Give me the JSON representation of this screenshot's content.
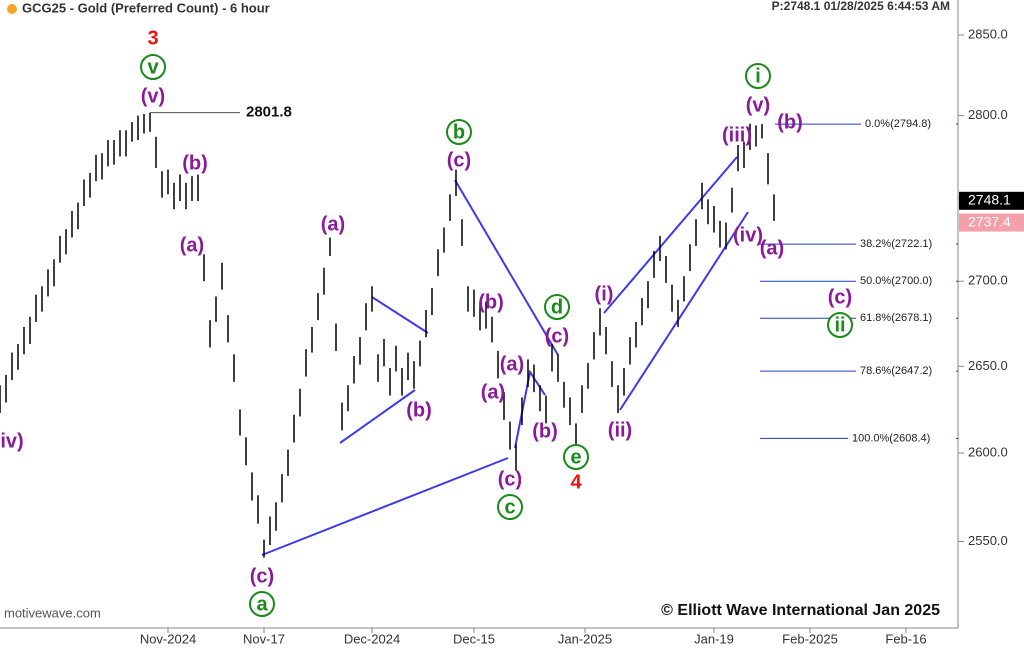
{
  "chart_data": {
    "type": "ohlc",
    "title": "GCG25 - Gold (Preferred Count) - 6 hour",
    "status": "P:2748.1  01/28/2025 6:44:53 AM",
    "source": "motivewave.com",
    "copyright": "© Elliott Wave International Jan 2025",
    "log_scale": true,
    "bar_color": "#000000",
    "xlim": [
      0,
      160
    ],
    "ylim": [
      2502,
      2872
    ],
    "xticks": [
      {
        "value": 28,
        "label": "Nov-2024"
      },
      {
        "value": 44,
        "label": "Nov-17"
      },
      {
        "value": 62,
        "label": "Dec-2024"
      },
      {
        "value": 79,
        "label": "Dec-15"
      },
      {
        "value": 97.5,
        "label": "Jan-2025"
      },
      {
        "value": 119,
        "label": "Jan-19"
      },
      {
        "value": 135,
        "label": "Feb-2025"
      },
      {
        "value": 151,
        "label": "Feb-16"
      }
    ],
    "yticks": [
      {
        "value": 2550,
        "label": "2550.0"
      },
      {
        "value": 2600,
        "label": "2600.0"
      },
      {
        "value": 2650,
        "label": "2650.0"
      },
      {
        "value": 2700,
        "label": "2700.0"
      },
      {
        "value": 2750,
        "label": "2750.0"
      },
      {
        "value": 2800,
        "label": "2800.0"
      },
      {
        "value": 2850,
        "label": "2850.0"
      }
    ],
    "high": [
      2639,
      2645,
      2658,
      2663,
      2673,
      2679,
      2692,
      2697,
      2707,
      2713,
      2727,
      2731,
      2742,
      2747,
      2761,
      2765,
      2776,
      2777,
      2785,
      2785,
      2791,
      2791,
      2796,
      2800,
      2801,
      2801.8,
      2787,
      2766,
      2767,
      2759,
      2764,
      2759,
      2763,
      2764,
      2716,
      2677,
      2691,
      2711,
      2680,
      2657,
      2625,
      2609,
      2589,
      2576,
      2551,
      2564,
      2572,
      2588,
      2602,
      2622,
      2637,
      2660,
      2673,
      2693,
      2708,
      2726,
      2675,
      2629,
      2639,
      2656,
      2667,
      2687,
      2697,
      2657,
      2666,
      2649,
      2662,
      2649,
      2658,
      2653,
      2665,
      2683,
      2696,
      2719,
      2732,
      2752,
      2767,
      2737,
      2697,
      2695,
      2687,
      2688,
      2679,
      2659,
      2635,
      2618,
      2605,
      2632,
      2654,
      2651,
      2639,
      2633,
      2663,
      2657,
      2641,
      2632,
      2617,
      2639,
      2652,
      2670,
      2684,
      2673,
      2653,
      2639,
      2649,
      2667,
      2676,
      2690,
      2700,
      2718,
      2727,
      2715,
      2698,
      2689,
      2703,
      2722,
      2737,
      2759,
      2749,
      2745,
      2736,
      2735,
      2756,
      2782,
      2784,
      2795,
      2794,
      2794.8,
      2777,
      2752
    ],
    "low": [
      2623,
      2629,
      2642,
      2648,
      2657,
      2663,
      2676,
      2682,
      2691,
      2697,
      2711,
      2716,
      2726,
      2731,
      2745,
      2750,
      2760,
      2761,
      2769,
      2770,
      2775,
      2775,
      2784,
      2785,
      2789,
      2790,
      2768,
      2750,
      2752,
      2743,
      2748,
      2743,
      2748,
      2748,
      2700,
      2661,
      2676,
      2695,
      2664,
      2641,
      2610,
      2593,
      2573,
      2560,
      2541,
      2548,
      2556,
      2572,
      2587,
      2606,
      2621,
      2644,
      2658,
      2677,
      2692,
      2715,
      2659,
      2613,
      2624,
      2640,
      2651,
      2671,
      2682,
      2641,
      2650,
      2633,
      2647,
      2633,
      2642,
      2637,
      2650,
      2667,
      2680,
      2703,
      2717,
      2736,
      2751,
      2721,
      2682,
      2679,
      2671,
      2672,
      2664,
      2643,
      2619,
      2602,
      2590,
      2616,
      2638,
      2635,
      2624,
      2617,
      2647,
      2641,
      2626,
      2616,
      2601,
      2623,
      2637,
      2654,
      2668,
      2657,
      2638,
      2623,
      2633,
      2651,
      2661,
      2674,
      2684,
      2702,
      2712,
      2699,
      2682,
      2673,
      2688,
      2706,
      2721,
      2743,
      2734,
      2729,
      2720,
      2719,
      2741,
      2766,
      2768,
      2779,
      2781,
      2786,
      2758,
      2736
    ],
    "peak": {
      "value": 2801.8,
      "label": "2801.8"
    },
    "price_boxes": [
      {
        "value": 2748.1,
        "label": "2748.1",
        "color": "#000000"
      },
      {
        "value": 2737.4,
        "label": "2737.4",
        "color": "#f4a0a8"
      }
    ],
    "fib_levels": [
      {
        "value": 2794.8,
        "label": "0.0%(2794.8)"
      },
      {
        "value": 2722.1,
        "label": "38.2%(2722.1)"
      },
      {
        "value": 2700.0,
        "label": "50.0%(2700.0)"
      },
      {
        "value": 2678.1,
        "label": "61.8%(2678.1)"
      },
      {
        "value": 2647.2,
        "label": "78.6%(2647.2)"
      },
      {
        "value": 2608.4,
        "label": "100.0%(2608.4)"
      }
    ],
    "fib_color": "#1a3ecc",
    "annotations": [
      {
        "text": "3",
        "style": "red"
      },
      {
        "text": "v",
        "style": "circle"
      },
      {
        "text": "(v)",
        "style": "purple"
      },
      {
        "text": "(b)",
        "style": "purple"
      },
      {
        "text": "(a)",
        "style": "purple"
      },
      {
        "text": "iv)",
        "style": "purple"
      },
      {
        "text": "(a)",
        "style": "purple"
      },
      {
        "text": "(b)",
        "style": "purple"
      },
      {
        "text": "(c)",
        "style": "purple"
      },
      {
        "text": "a",
        "style": "circle"
      },
      {
        "text": "b",
        "style": "circle"
      },
      {
        "text": "(c)",
        "style": "purple"
      },
      {
        "text": "(b)",
        "style": "purple"
      },
      {
        "text": "(a)",
        "style": "purple"
      },
      {
        "text": "(a)",
        "style": "purple"
      },
      {
        "text": "(b)",
        "style": "purple"
      },
      {
        "text": "(c)",
        "style": "purple"
      },
      {
        "text": "c",
        "style": "circle"
      },
      {
        "text": "d",
        "style": "circle"
      },
      {
        "text": "(c)",
        "style": "purple"
      },
      {
        "text": "e",
        "style": "circle"
      },
      {
        "text": "4",
        "style": "red"
      },
      {
        "text": "(i)",
        "style": "purple"
      },
      {
        "text": "(ii)",
        "style": "purple"
      },
      {
        "text": "(iii)",
        "style": "purple"
      },
      {
        "text": "(iv)",
        "style": "purple"
      },
      {
        "text": "(a)",
        "style": "purple"
      },
      {
        "text": "(v)",
        "style": "purple"
      },
      {
        "text": "i",
        "style": "circle"
      },
      {
        "text": "(b)",
        "style": "purple"
      },
      {
        "text": "(c)",
        "style": "purple"
      },
      {
        "text": "ii",
        "style": "circle"
      }
    ]
  }
}
